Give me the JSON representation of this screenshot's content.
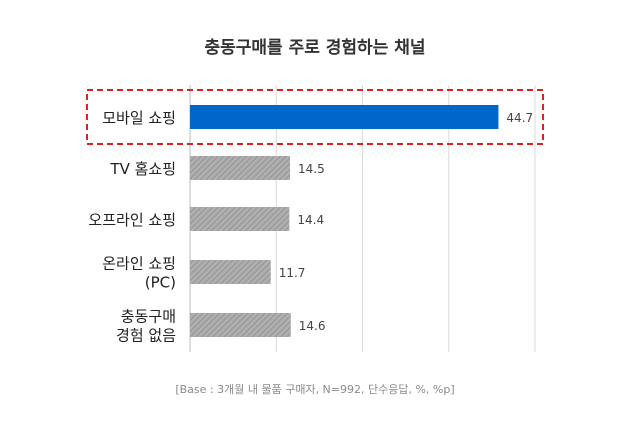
{
  "chart_data": {
    "type": "bar",
    "orientation": "horizontal",
    "title": "충동구매를 주로 경험하는 채널",
    "categories": [
      [
        "모바일 쇼핑"
      ],
      [
        "TV 홈쇼핑"
      ],
      [
        "오프라인 쇼핑"
      ],
      [
        "온라인 쇼핑",
        "(PC)"
      ],
      [
        "충동구매",
        "경험 없음"
      ]
    ],
    "values": [
      44.7,
      14.5,
      14.4,
      11.7,
      14.6
    ],
    "value_labels": [
      "44.7",
      "14.5",
      "14.4",
      "11.7",
      "14.6"
    ],
    "xlim": [
      0,
      50
    ],
    "gridlines": [
      0,
      12.5,
      25,
      37.5,
      50
    ],
    "highlight_index": 0,
    "note": "[Base : 3개월 내 물품 구매자, N=992, 단수응답, %, %p]"
  },
  "colors": {
    "highlight_bar": "#0066cc",
    "bar_fill": "#b0b0b0",
    "bar_stripe": "#9a9a9a",
    "highlight_border": "#e02020",
    "grid": "#d9d9d9",
    "axis": "#bcbcbc"
  }
}
